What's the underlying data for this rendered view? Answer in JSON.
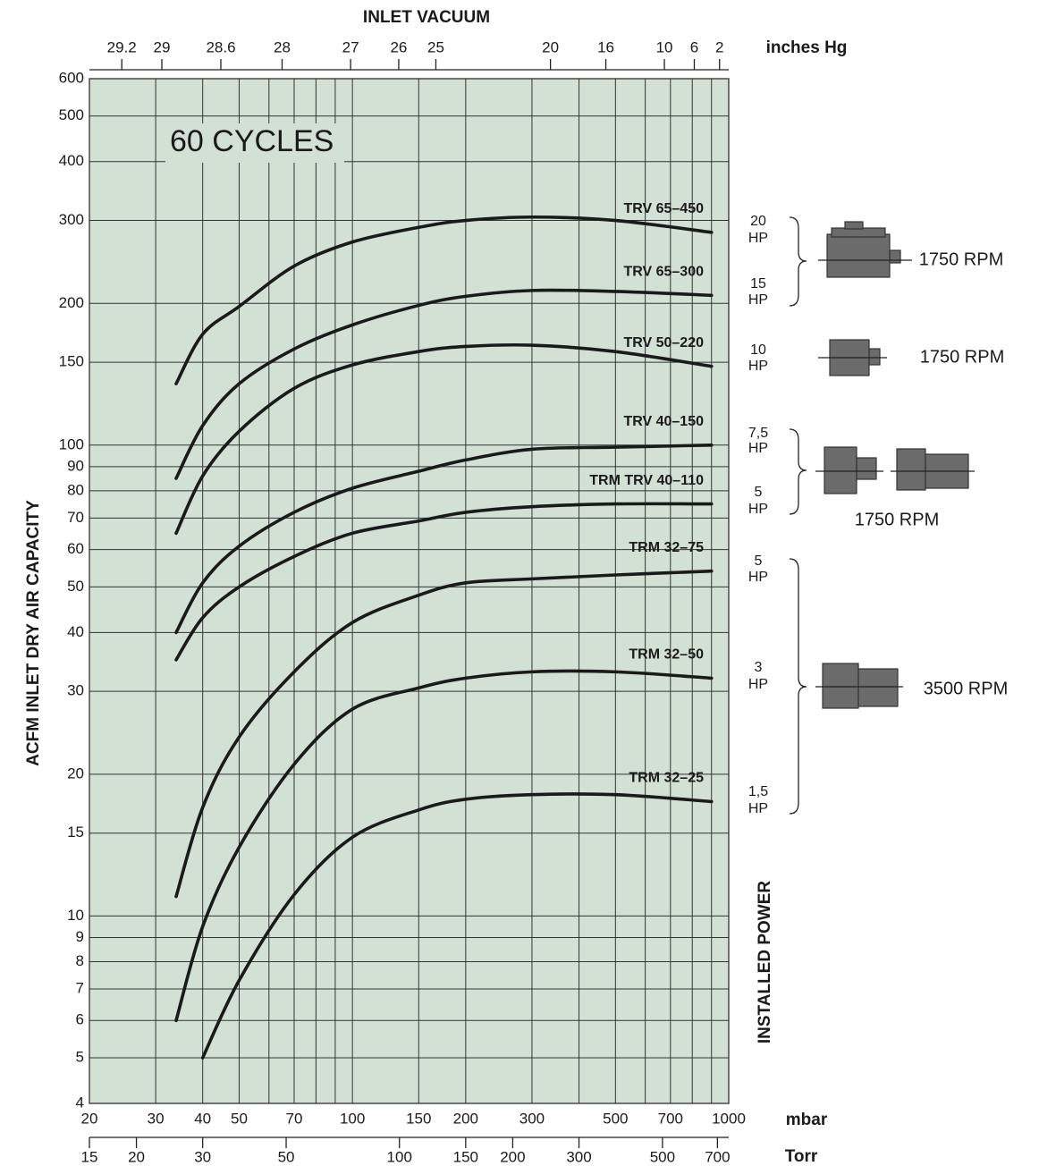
{
  "chart_data": {
    "type": "line",
    "title": "60 CYCLES",
    "top_axis_title": "INLET VACUUM",
    "x2_unit": "inches Hg",
    "x_unit": "mbar",
    "x3_unit": "Torr",
    "y_label": "ACFM INLET DRY AIR CAPACITY",
    "right_label": "INSTALLED POWER",
    "xscale": "log",
    "yscale": "log",
    "grid": true,
    "plot_color": "#d3e1d5",
    "xlim": [
      20,
      1000
    ],
    "ylim": [
      4,
      600
    ],
    "xticks": [
      20,
      30,
      40,
      50,
      70,
      100,
      150,
      200,
      300,
      500,
      700,
      1000
    ],
    "xminor": [
      60,
      80,
      90,
      400,
      600,
      800,
      900
    ],
    "yticks": [
      4,
      5,
      6,
      7,
      8,
      9,
      10,
      15,
      20,
      30,
      40,
      50,
      60,
      70,
      80,
      90,
      100,
      150,
      200,
      300,
      400,
      500,
      600
    ],
    "x2ticks": [
      29.2,
      29,
      28.6,
      28,
      27,
      26,
      25,
      20,
      16,
      10,
      6,
      2
    ],
    "x3ticks": [
      15,
      20,
      30,
      50,
      100,
      150,
      200,
      300,
      500,
      700
    ],
    "series": [
      {
        "name": "TRV 65–450",
        "color": "#1a1a1a",
        "x": [
          34,
          40,
          50,
          70,
          100,
          150,
          200,
          300,
          500,
          900
        ],
        "values": [
          135,
          172,
          197,
          240,
          270,
          290,
          300,
          305,
          300,
          283
        ]
      },
      {
        "name": "TRV 65–300",
        "color": "#1a1a1a",
        "x": [
          34,
          40,
          50,
          70,
          100,
          150,
          200,
          300,
          500,
          900
        ],
        "values": [
          85,
          110,
          135,
          160,
          180,
          198,
          207,
          213,
          212,
          208
        ]
      },
      {
        "name": "TRV 50–220",
        "color": "#1a1a1a",
        "x": [
          34,
          40,
          50,
          70,
          100,
          150,
          200,
          300,
          500,
          900
        ],
        "values": [
          65,
          86,
          107,
          132,
          148,
          158,
          162,
          163,
          158,
          147
        ]
      },
      {
        "name": "TRV 40–150",
        "color": "#1a1a1a",
        "x": [
          34,
          40,
          50,
          70,
          100,
          150,
          200,
          300,
          500,
          900
        ],
        "values": [
          40,
          51,
          61,
          72,
          81,
          88,
          93,
          98,
          99,
          100
        ]
      },
      {
        "name": "TRM TRV 40–110",
        "color": "#1a1a1a",
        "x": [
          34,
          40,
          50,
          70,
          100,
          150,
          200,
          300,
          500,
          900
        ],
        "values": [
          35,
          43,
          50,
          58,
          65,
          69,
          72,
          74,
          75,
          75
        ]
      },
      {
        "name": "TRM 32–75",
        "color": "#1a1a1a",
        "x": [
          34,
          40,
          50,
          70,
          100,
          150,
          200,
          300,
          500,
          900
        ],
        "values": [
          11,
          17,
          24,
          33,
          42,
          48,
          51,
          52,
          53,
          54
        ]
      },
      {
        "name": "TRM 32–50",
        "color": "#1a1a1a",
        "x": [
          34,
          40,
          50,
          70,
          100,
          150,
          200,
          300,
          500,
          900
        ],
        "values": [
          6,
          9.5,
          14,
          21,
          27.5,
          30.5,
          32,
          33,
          33,
          32
        ]
      },
      {
        "name": "TRM 32–25",
        "color": "#1a1a1a",
        "x": [
          40,
          50,
          70,
          100,
          150,
          200,
          300,
          500,
          900
        ],
        "values": [
          5,
          7.3,
          11.1,
          14.7,
          16.8,
          17.7,
          18.1,
          18.1,
          17.5
        ]
      }
    ],
    "power_labels": [
      [
        "20",
        "HP"
      ],
      [
        "15",
        "HP"
      ],
      [
        "10",
        "HP"
      ],
      [
        "7,5",
        "HP"
      ],
      [
        "5",
        "HP"
      ],
      [
        "5",
        "HP"
      ],
      [
        "3",
        "HP"
      ],
      [
        "1,5",
        "HP"
      ]
    ],
    "rpm_labels": [
      "1750 RPM",
      "1750 RPM",
      "1750 RPM",
      "3500 RPM"
    ]
  }
}
